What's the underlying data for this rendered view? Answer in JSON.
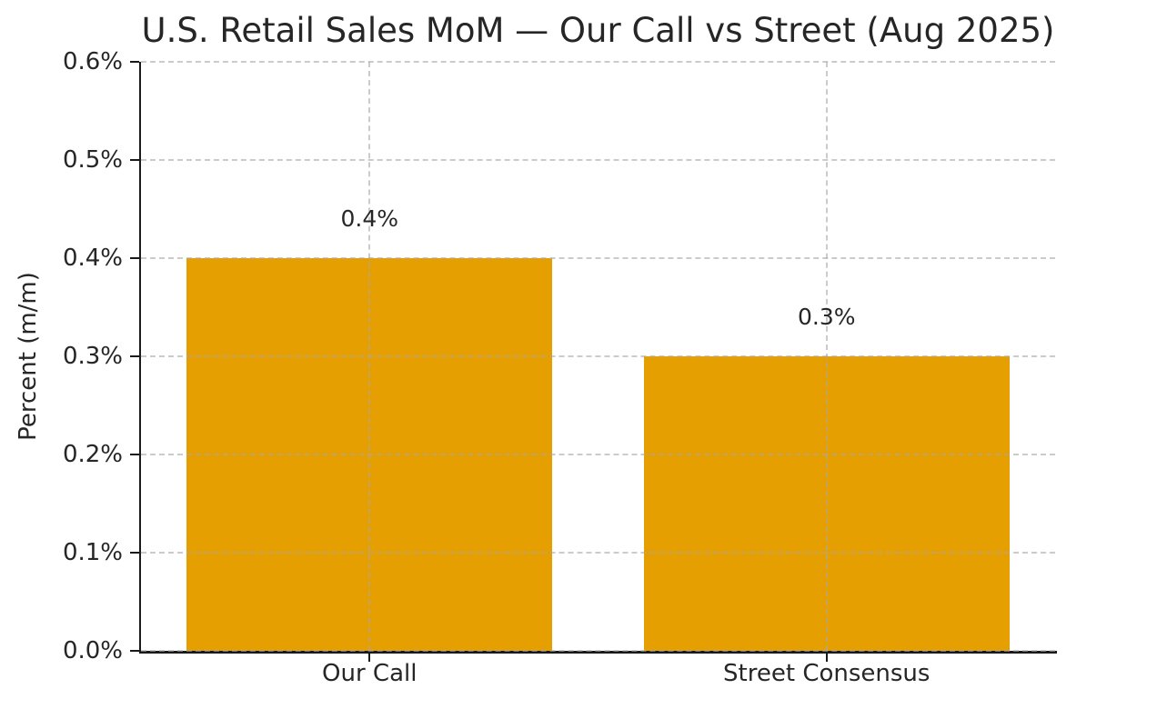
{
  "chart_data": {
    "type": "bar",
    "title": "U.S. Retail Sales MoM — Our Call vs Street (Aug 2025)",
    "xlabel": "",
    "ylabel": "Percent (m/m)",
    "categories": [
      "Our Call",
      "Street Consensus"
    ],
    "values": [
      0.4,
      0.3
    ],
    "value_labels": [
      "0.4%",
      "0.3%"
    ],
    "ylim": [
      0.0,
      0.6
    ],
    "ytick_values": [
      0.0,
      0.1,
      0.2,
      0.3,
      0.4,
      0.5,
      0.6
    ],
    "ytick_labels": [
      "0.0%",
      "0.1%",
      "0.2%",
      "0.3%",
      "0.4%",
      "0.5%",
      "0.6%"
    ],
    "bar_width_fraction": 0.8,
    "grid": "dashed gray, horizontal at every y tick and vertical at each bar center, drawn over bars",
    "legend": "none",
    "colors": {
      "bar": "#E69F00",
      "grid": "#cccccc",
      "spine": "#1a1a1a",
      "text": "#262626"
    }
  }
}
